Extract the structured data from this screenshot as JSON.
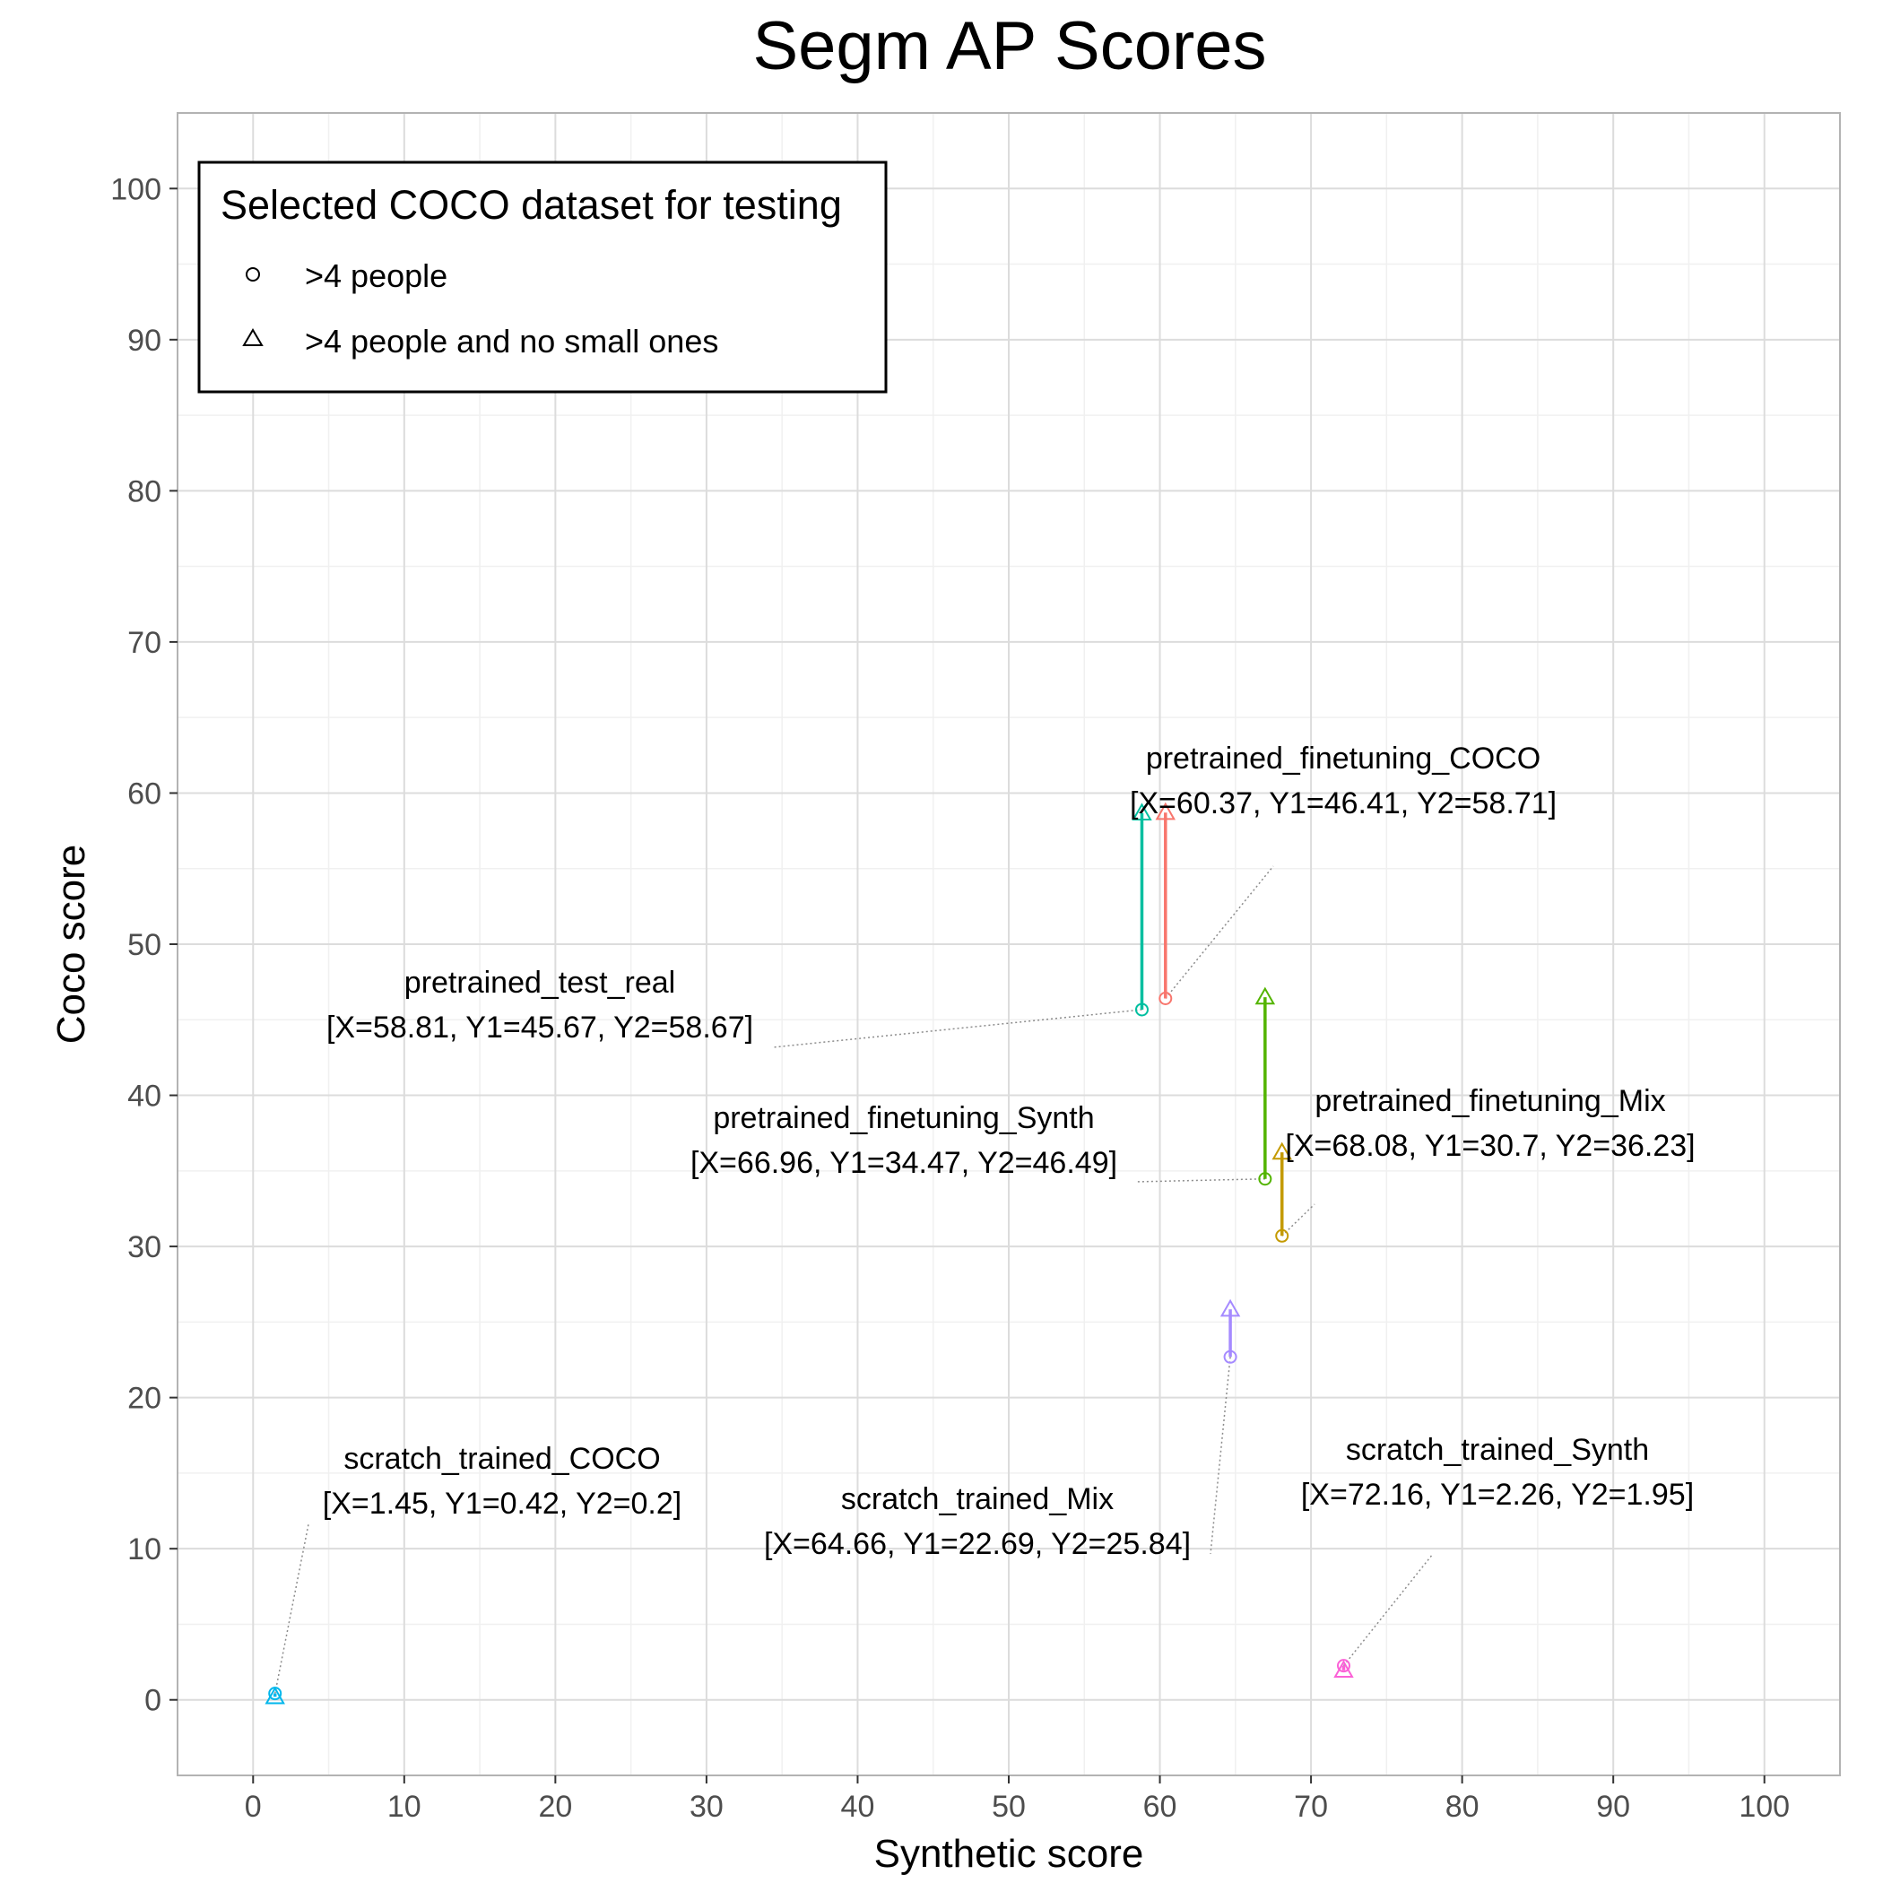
{
  "chart_data": {
    "type": "scatter",
    "title": "Segm AP Scores",
    "xlabel": "Synthetic score",
    "ylabel": "Coco score",
    "xlim": [
      -5,
      105
    ],
    "ylim": [
      -5,
      105
    ],
    "xticks": [
      0,
      10,
      20,
      30,
      40,
      50,
      60,
      70,
      80,
      90,
      100
    ],
    "yticks": [
      0,
      10,
      20,
      30,
      40,
      50,
      60,
      70,
      80,
      90,
      100
    ],
    "grid": true,
    "legend": {
      "title": "Selected COCO dataset for testing",
      "position": "top-left",
      "entries": [
        {
          "marker": "circle",
          "label": ">4 people"
        },
        {
          "marker": "triangle",
          "label": ">4 people and no small ones"
        }
      ]
    },
    "points": [
      {
        "name": "pretrained_finetuning_COCO",
        "x": 60.37,
        "y1": 46.41,
        "y2": 58.71,
        "color": "#F8766D",
        "label": "pretrained_finetuning_COCO",
        "values_text": "[X=60.37, Y1=46.41, Y2=58.71]"
      },
      {
        "name": "pretrained_test_real",
        "x": 58.81,
        "y1": 45.67,
        "y2": 58.67,
        "color": "#00BFA0",
        "label": "pretrained_test_real",
        "values_text": "[X=58.81, Y1=45.67, Y2=58.67]"
      },
      {
        "name": "pretrained_finetuning_Synth",
        "x": 66.96,
        "y1": 34.47,
        "y2": 46.49,
        "color": "#53B400",
        "label": "pretrained_finetuning_Synth",
        "values_text": "[X=66.96, Y1=34.47, Y2=46.49]"
      },
      {
        "name": "pretrained_finetuning_Mix",
        "x": 68.08,
        "y1": 30.7,
        "y2": 36.23,
        "color": "#C49A00",
        "label": "pretrained_finetuning_Mix",
        "values_text": "[X=68.08, Y1=30.7, Y2=36.23]"
      },
      {
        "name": "scratch_trained_Mix",
        "x": 64.66,
        "y1": 22.69,
        "y2": 25.84,
        "color": "#A58AFF",
        "label": "scratch_trained_Mix",
        "values_text": "[X=64.66, Y1=22.69, Y2=25.84]"
      },
      {
        "name": "scratch_trained_COCO",
        "x": 1.45,
        "y1": 0.42,
        "y2": 0.2,
        "color": "#00B6EB",
        "label": "scratch_trained_COCO",
        "values_text": "[X=1.45, Y1=0.42, Y2=0.2]"
      },
      {
        "name": "scratch_trained_Synth",
        "x": 72.16,
        "y1": 2.26,
        "y2": 1.95,
        "color": "#FB61D7",
        "label": "scratch_trained_Synth",
        "values_text": "[X=72.16, Y1=2.26, Y2=1.95]"
      }
    ]
  }
}
